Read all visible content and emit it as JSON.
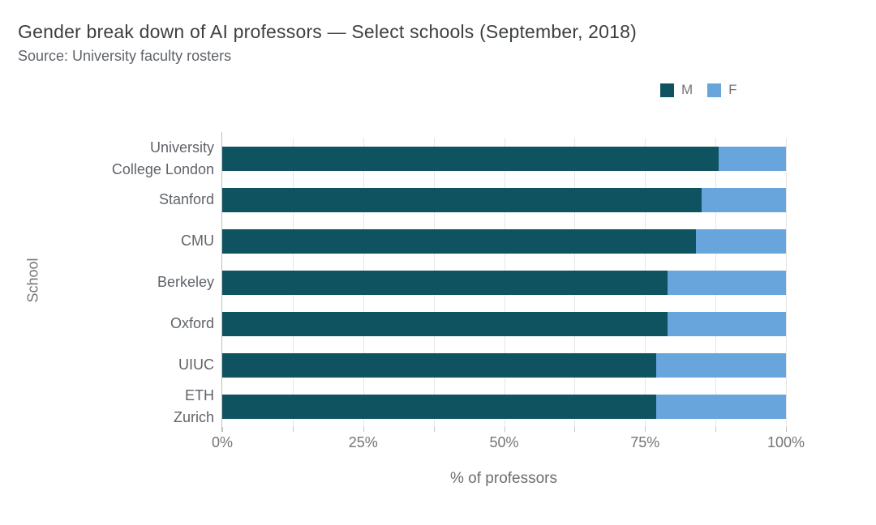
{
  "header": {
    "title": "Gender break down of AI professors — Select schools (September, 2018)",
    "subtitle": "Source: University faculty rosters"
  },
  "legend": {
    "position": "top-right",
    "items": [
      {
        "label": "M",
        "color": "#0f5260"
      },
      {
        "label": "F",
        "color": "#67a5dc"
      }
    ]
  },
  "chart_data": {
    "type": "bar",
    "orientation": "horizontal",
    "stacked": true,
    "title": "Gender break down of AI professors — Select schools (September, 2018)",
    "subtitle": "Source: University faculty rosters",
    "xlabel": "% of professors",
    "ylabel": "School",
    "xlim": [
      0,
      100
    ],
    "grid": true,
    "minor_grid_step": 12.5,
    "categories": [
      "University\nCollege London",
      "Stanford",
      "CMU",
      "Berkeley",
      "Oxford",
      "UIUC",
      "ETH\nZurich"
    ],
    "series": [
      {
        "name": "M",
        "color": "#0f5260",
        "values": [
          88,
          85,
          84,
          79,
          79,
          77,
          77
        ]
      },
      {
        "name": "F",
        "color": "#67a5dc",
        "values": [
          12,
          15,
          16,
          21,
          21,
          23,
          23
        ]
      }
    ],
    "x_ticks": [
      {
        "value": 0,
        "label": "0%"
      },
      {
        "value": 25,
        "label": "25%"
      },
      {
        "value": 50,
        "label": "50%"
      },
      {
        "value": 75,
        "label": "75%"
      },
      {
        "value": 100,
        "label": "100%"
      }
    ]
  },
  "colors": {
    "male": "#0f5260",
    "female": "#67a5dc",
    "title_text": "#3c4043",
    "muted_text": "#757575",
    "gridline": "#e6e6e6",
    "axis_line": "#bdbdbd",
    "background": "#ffffff"
  }
}
